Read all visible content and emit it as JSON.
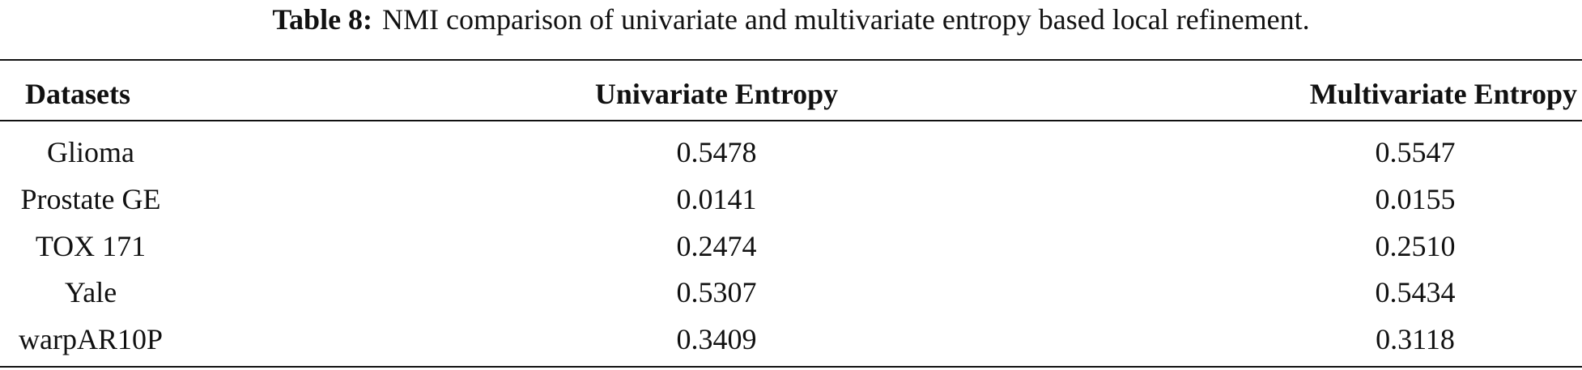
{
  "caption": {
    "label": "Table 8:",
    "text": "NMI comparison of univariate and multivariate entropy based local refinement."
  },
  "table": {
    "headers": [
      "Datasets",
      "Univariate Entropy",
      "Multivariate Entropy"
    ],
    "rows": [
      [
        "Glioma",
        "0.5478",
        "0.5547"
      ],
      [
        "Prostate GE",
        "0.0141",
        "0.0155"
      ],
      [
        "TOX 171",
        "0.2474",
        "0.2510"
      ],
      [
        "Yale",
        "0.5307",
        "0.5434"
      ],
      [
        "warpAR10P",
        "0.3409",
        "0.3118"
      ]
    ]
  }
}
